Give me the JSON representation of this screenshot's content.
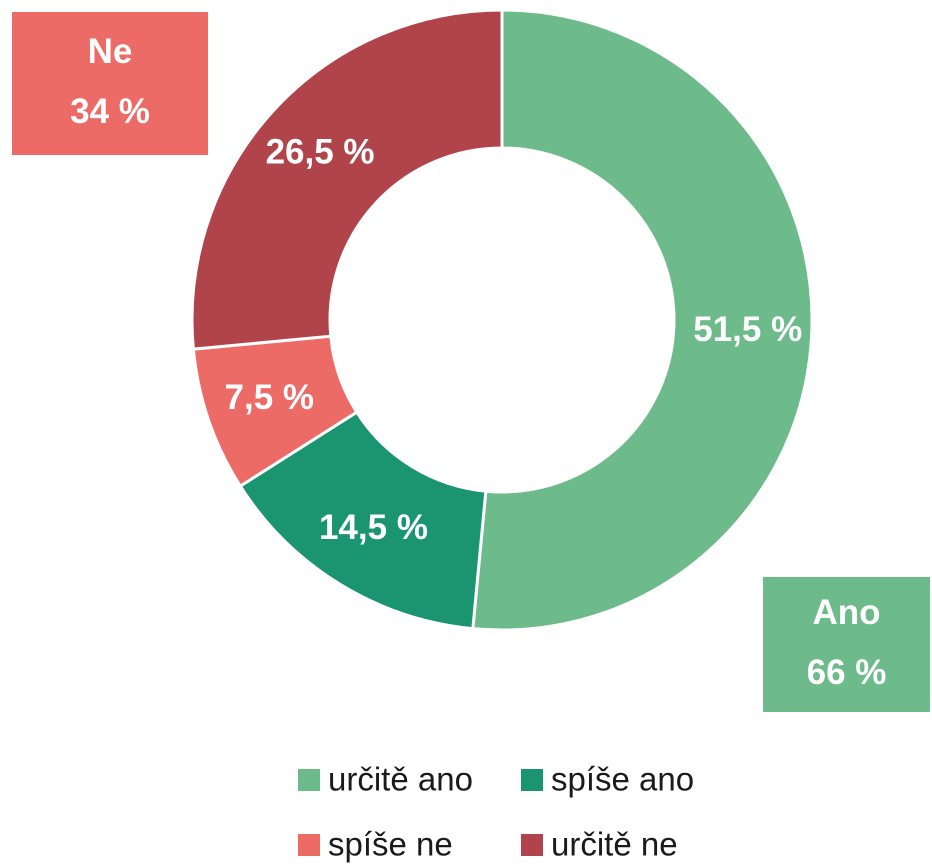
{
  "chart_data": {
    "type": "donut",
    "categories": [
      "určitě ano",
      "spíše ano",
      "spíše ne",
      "určitě ne"
    ],
    "values": [
      51.5,
      14.5,
      7.5,
      26.5
    ],
    "value_labels": [
      "51,5 %",
      "14,5 %",
      "7,5 %",
      "26,5 %"
    ],
    "colors": [
      "#6dbb8b",
      "#1b9470",
      "#ec6b66",
      "#b0444a"
    ],
    "annotations": [
      {
        "title": "Ne",
        "text": "34 %",
        "color": "#ec6b66"
      },
      {
        "title": "Ano",
        "text": "66 %",
        "color": "#6dbb8b"
      }
    ]
  }
}
